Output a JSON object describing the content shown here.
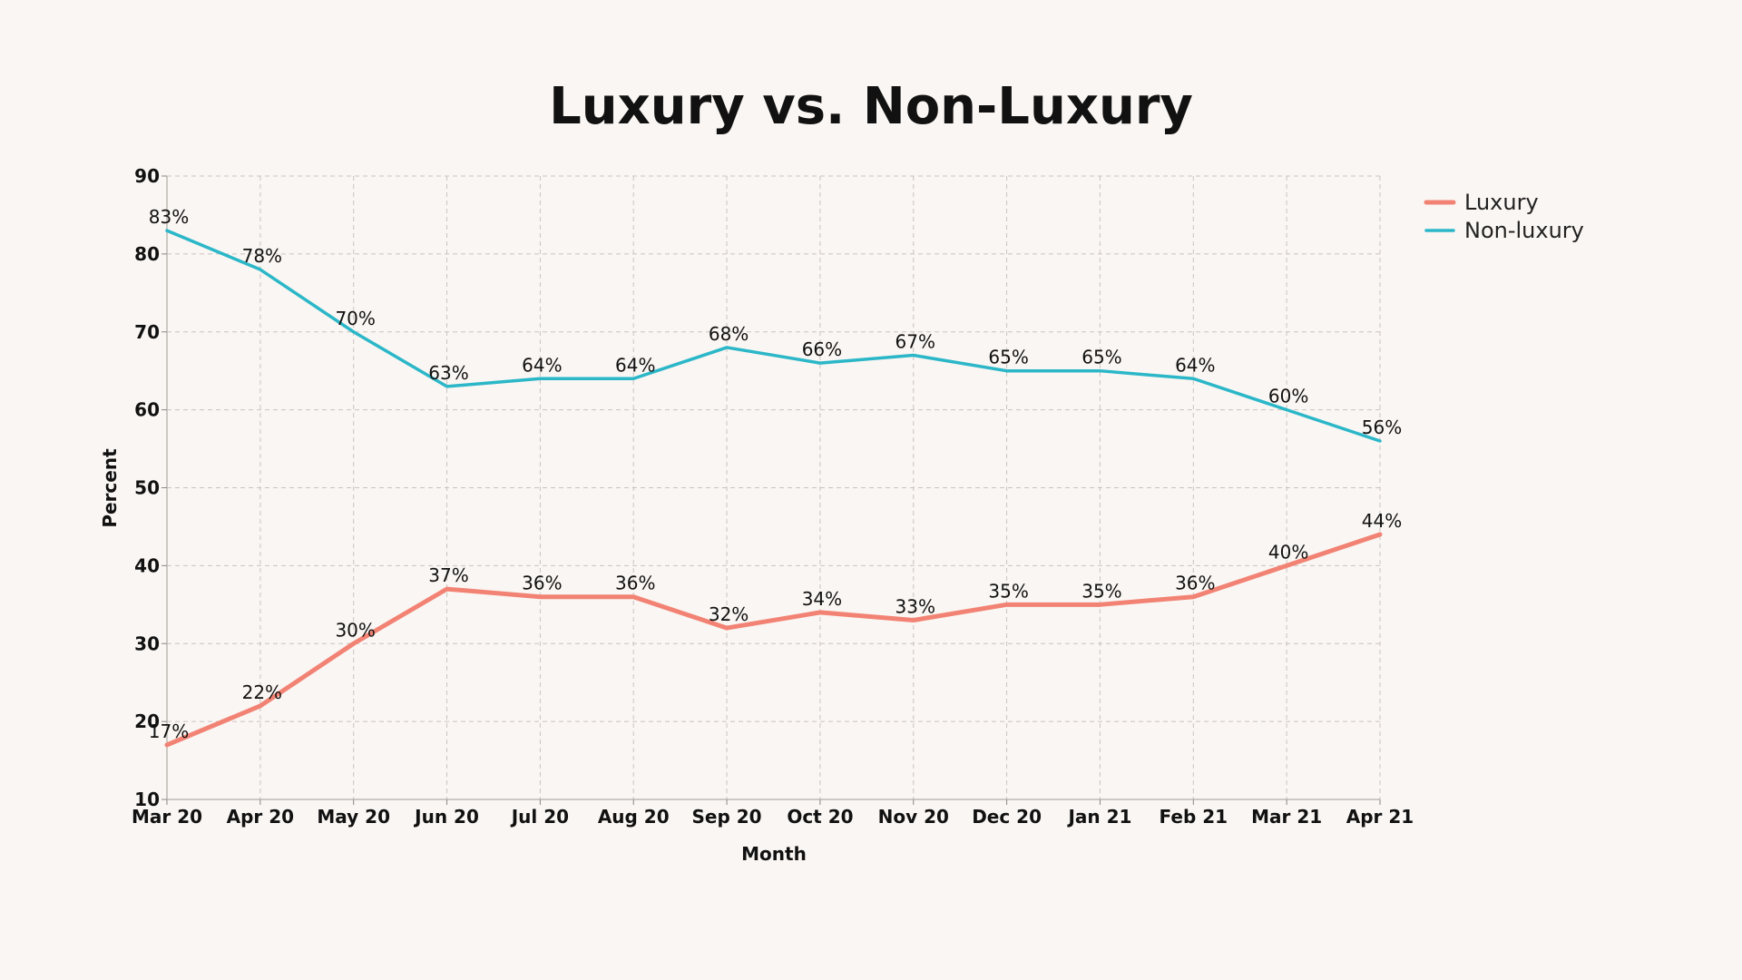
{
  "chart_data": {
    "type": "line",
    "title": "Luxury vs. Non-Luxury",
    "xlabel": "Month",
    "ylabel": "Percent",
    "ylim": [
      10,
      90
    ],
    "yticks": [
      10,
      20,
      30,
      40,
      50,
      60,
      70,
      80,
      90
    ],
    "grid": true,
    "legend_position": "top-right",
    "value_suffix": "%",
    "categories": [
      "Mar 20",
      "Apr 20",
      "May 20",
      "Jun 20",
      "Jul 20",
      "Aug 20",
      "Sep 20",
      "Oct 20",
      "Nov 20",
      "Dec 20",
      "Jan 21",
      "Feb 21",
      "Mar 21",
      "Apr 21"
    ],
    "series": [
      {
        "name": "Luxury",
        "color": "#f28374",
        "values": [
          17,
          22,
          30,
          37,
          36,
          36,
          32,
          34,
          33,
          35,
          35,
          36,
          40,
          44
        ]
      },
      {
        "name": "Non-luxury",
        "color": "#2bb7c8",
        "values": [
          83,
          78,
          70,
          63,
          64,
          64,
          68,
          66,
          67,
          65,
          65,
          64,
          60,
          56
        ]
      }
    ]
  }
}
